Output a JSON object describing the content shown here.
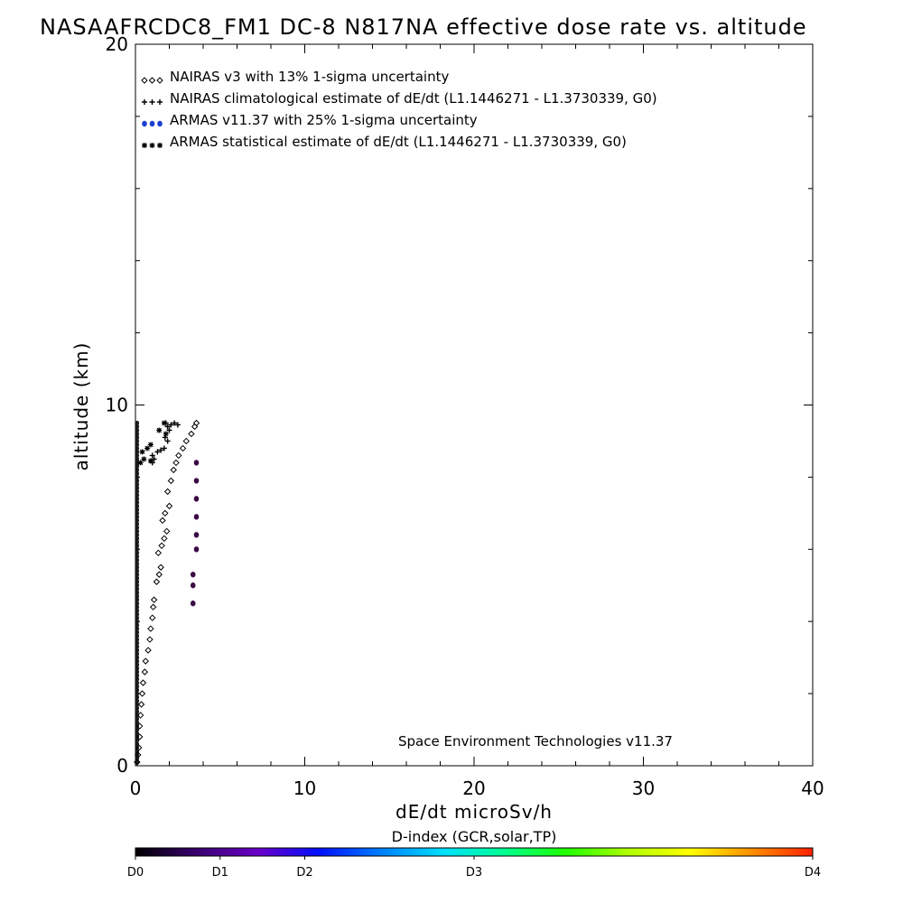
{
  "chart_data": {
    "type": "scatter",
    "title": "NASAAFRCDC8_FM1 DC-8   N817NA effective dose rate vs. altitude",
    "xlabel": "dE/dt microSv/h",
    "ylabel": "altitude (km)",
    "xlim": [
      0,
      40
    ],
    "ylim": [
      0,
      20
    ],
    "xticks": [
      "0",
      "10",
      "20",
      "30",
      "40"
    ],
    "yticks": [
      "0",
      "10",
      "20"
    ],
    "legend_position": "top-left",
    "footer_credit": "Space Environment Technologies v11.37",
    "series": [
      {
        "name": "NAIRAS v3 with 13% 1-sigma uncertainty",
        "marker": "diamond",
        "color": "#000000",
        "points": [
          [
            0.1,
            0.1
          ],
          [
            0.15,
            0.3
          ],
          [
            0.2,
            0.5
          ],
          [
            0.25,
            0.8
          ],
          [
            0.25,
            1.1
          ],
          [
            0.3,
            1.4
          ],
          [
            0.35,
            1.7
          ],
          [
            0.4,
            2.0
          ],
          [
            0.45,
            2.3
          ],
          [
            0.55,
            2.6
          ],
          [
            0.6,
            2.9
          ],
          [
            0.75,
            3.2
          ],
          [
            0.85,
            3.5
          ],
          [
            0.9,
            3.8
          ],
          [
            1.0,
            4.1
          ],
          [
            1.05,
            4.4
          ],
          [
            1.1,
            4.6
          ],
          [
            1.25,
            5.1
          ],
          [
            1.4,
            5.3
          ],
          [
            1.5,
            5.5
          ],
          [
            1.35,
            5.9
          ],
          [
            1.55,
            6.1
          ],
          [
            1.7,
            6.3
          ],
          [
            1.85,
            6.5
          ],
          [
            1.6,
            6.8
          ],
          [
            1.75,
            7.0
          ],
          [
            2.0,
            7.2
          ],
          [
            1.9,
            7.6
          ],
          [
            2.1,
            7.9
          ],
          [
            2.25,
            8.2
          ],
          [
            2.4,
            8.4
          ],
          [
            2.55,
            8.6
          ],
          [
            2.8,
            8.8
          ],
          [
            3.0,
            9.0
          ],
          [
            3.3,
            9.2
          ],
          [
            3.5,
            9.4
          ],
          [
            3.6,
            9.5
          ]
        ]
      },
      {
        "name": "NAIRAS climatological estimate of dE/dt (L1.1446271 - L1.3730339, G0)",
        "marker": "plus",
        "color": "#000000",
        "points": [
          [
            1.0,
            8.4
          ],
          [
            1.1,
            8.5
          ],
          [
            1.0,
            8.6
          ],
          [
            1.3,
            8.7
          ],
          [
            1.5,
            8.75
          ],
          [
            1.7,
            8.8
          ],
          [
            1.9,
            9.0
          ],
          [
            1.75,
            9.1
          ],
          [
            2.0,
            9.3
          ],
          [
            1.9,
            9.4
          ],
          [
            2.1,
            9.45
          ],
          [
            2.3,
            9.5
          ],
          [
            2.5,
            9.45
          ],
          [
            1.8,
            9.5
          ]
        ]
      },
      {
        "name": "ARMAS v11.37 with 25% 1-sigma uncertainty",
        "marker": "dot",
        "color": "#1a3fd1",
        "points": [
          [
            3.4,
            4.5
          ],
          [
            3.4,
            5.0
          ],
          [
            3.4,
            5.3
          ],
          [
            3.6,
            6.0
          ],
          [
            3.6,
            6.4
          ],
          [
            3.6,
            6.9
          ],
          [
            3.6,
            7.4
          ],
          [
            3.6,
            7.9
          ],
          [
            3.6,
            8.4
          ]
        ]
      },
      {
        "name": "ARMAS statistical estimate of dE/dt (L1.1446271 - L1.3730339, G0)",
        "marker": "asterisk",
        "color": "#000000",
        "points": [
          [
            0.3,
            8.4
          ],
          [
            0.5,
            8.5
          ],
          [
            0.9,
            8.45
          ],
          [
            0.4,
            8.7
          ],
          [
            0.7,
            8.8
          ],
          [
            0.9,
            8.9
          ],
          [
            1.4,
            9.3
          ],
          [
            1.8,
            9.2
          ],
          [
            1.7,
            9.5
          ]
        ]
      }
    ],
    "axis_data_column": {
      "marker": "dot",
      "color": "#1a1a1a",
      "x": 0.1,
      "y_from": 0.1,
      "y_to": 9.5,
      "step": 0.1
    },
    "colorbar": {
      "title": "D-index (GCR,solar,TP)",
      "labels": [
        {
          "text": "D0",
          "value": 0.0
        },
        {
          "text": "D1",
          "value": 0.125
        },
        {
          "text": "D2",
          "value": 0.25
        },
        {
          "text": "D3",
          "value": 0.5
        },
        {
          "text": "D4",
          "value": 1.0
        }
      ],
      "colors": [
        "#000000",
        "#3a0070",
        "#6a00c8",
        "#0010ff",
        "#0080ff",
        "#00e0ff",
        "#00ff90",
        "#20ff00",
        "#b0ff00",
        "#ffff00",
        "#ff9000",
        "#ff2000"
      ]
    }
  }
}
